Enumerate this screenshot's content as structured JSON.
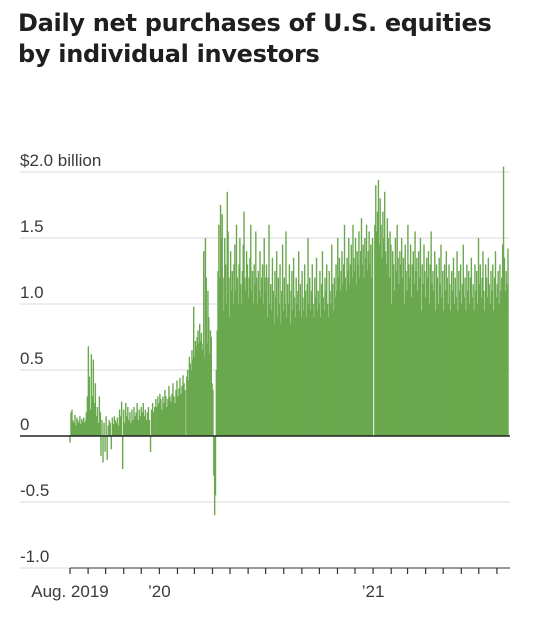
{
  "chart_data": {
    "type": "bar",
    "title": "Daily net purchases of U.S. equities by individual investors",
    "xlabel": "",
    "ylabel": "",
    "ylim": [
      -1.0,
      2.0
    ],
    "y_ticks": [
      {
        "value": 2.0,
        "label": "$2.0 billion"
      },
      {
        "value": 1.5,
        "label": "1.5"
      },
      {
        "value": 1.0,
        "label": "1.0"
      },
      {
        "value": 0.5,
        "label": "0.5"
      },
      {
        "value": 0,
        "label": "0"
      },
      {
        "value": -0.5,
        "label": "-0.5"
      },
      {
        "value": -1.0,
        "label": "-1.0"
      }
    ],
    "x_labels": [
      {
        "date": "2019-08",
        "label": "Aug. 2019"
      },
      {
        "date": "2020-01",
        "label": "’20"
      },
      {
        "date": "2021-01",
        "label": "’21"
      }
    ],
    "x_range": [
      "2019-08-01",
      "2021-08-20"
    ],
    "grid": true,
    "series": [
      {
        "color": "#6aa84f",
        "segments": [
          {
            "start": "2019-08-01",
            "end": "2019-08-28",
            "values": [
              -0.05,
              0.18,
              0.2,
              0.12,
              0.1,
              0.16,
              0.08,
              0.14,
              0.12,
              0.1,
              0.15,
              0.09,
              0.13,
              0.11,
              0.14,
              0.1,
              0.12
            ]
          },
          {
            "start": "2019-08-29",
            "end": "2019-09-22",
            "values": [
              0.18,
              0.3,
              0.68,
              0.45,
              0.2,
              0.62,
              0.3,
              0.58,
              0.25,
              0.4,
              0.15,
              0.22,
              0.1,
              0.3,
              0.18
            ]
          },
          {
            "start": "2019-09-23",
            "end": "2019-12-24",
            "values": [
              -0.15,
              0.12,
              -0.2,
              0.1,
              -0.12,
              0.15,
              -0.18,
              0.08,
              0.12,
              0.1,
              -0.1,
              0.14,
              0.09,
              0.15,
              0.12,
              0.1,
              0.14,
              0.08,
              0.2,
              0.15,
              0.26,
              -0.25,
              0.2,
              0.1,
              0.25,
              0.15,
              0.22,
              0.12,
              0.18,
              0.1,
              0.2,
              0.12,
              0.22,
              0.15,
              0.18,
              0.25,
              0.12,
              0.2,
              0.15,
              0.22,
              0.18,
              0.25,
              0.15,
              0.2,
              0.12,
              0.18,
              0.22,
              0.12,
              -0.12,
              0.2,
              0.25,
              0.18,
              0.22
            ]
          },
          {
            "start": "2019-12-26",
            "end": "2020-02-14",
            "values": [
              0.28,
              0.22,
              0.3,
              0.25,
              0.32,
              0.28,
              0.2,
              0.3,
              0.25,
              0.35,
              0.3,
              0.22,
              0.28,
              0.38,
              0.3,
              0.26,
              0.32,
              0.4,
              0.3,
              0.25,
              0.35,
              0.42,
              0.3,
              0.36,
              0.44,
              0.32,
              0.38,
              0.46,
              0.4,
              0.35
            ]
          },
          {
            "start": "2020-02-17",
            "end": "2020-03-16",
            "values": [
              0.45,
              0.5,
              0.42,
              0.6,
              0.55,
              0.5,
              0.65,
              0.58,
              0.98,
              0.6,
              0.72,
              0.68,
              0.75,
              0.8,
              0.7,
              0.85,
              0.72,
              0.78,
              0.65,
              0.7
            ]
          },
          {
            "start": "2020-03-17",
            "end": "2020-06-30",
            "values": [
              1.4,
              0.6,
              1.5,
              1.2,
              0.7,
              1.1,
              0.9,
              0.62,
              0.8,
              0.75,
              0.4,
              0.35,
              -0.3,
              -0.6,
              -0.45,
              0.5,
              0.8,
              1.25,
              1.6,
              1.2,
              1.75,
              1.5,
              1.68,
              1.2,
              0.95,
              1.5,
              1.3,
              1.0,
              1.85,
              1.55,
              1.2,
              0.9,
              1.4,
              1.1,
              1.25,
              1.0,
              1.3,
              1.45,
              1.1,
              1.6,
              1.2,
              1.0,
              1.3,
              1.5,
              1.15,
              1.0,
              1.25,
              1.45,
              1.7,
              1.2,
              1.1,
              1.4,
              1.3,
              1.05,
              1.2,
              1.35,
              1.6,
              1.1,
              1.25,
              1.0,
              1.3,
              1.15,
              1.55,
              1.2,
              1.0,
              1.25,
              1.1,
              1.4,
              1.05,
              1.2,
              1.3,
              1.0,
              1.5,
              1.2
            ]
          },
          {
            "start": "2020-07-01",
            "end": "2020-12-31",
            "values": [
              1.1,
              1.3,
              0.9,
              1.2,
              1.6,
              1.0,
              1.15,
              0.95,
              1.35,
              1.1,
              0.85,
              1.25,
              1.05,
              1.4,
              0.9,
              1.2,
              1.0,
              1.3,
              0.85,
              1.1,
              1.45,
              0.95,
              1.2,
              1.0,
              1.55,
              0.9,
              1.15,
              1.0,
              1.3,
              0.85,
              1.1,
              1.25,
              0.95,
              1.35,
              1.05,
              0.9,
              1.2,
              1.0,
              1.1,
              1.4,
              0.95,
              1.15,
              0.9,
              1.25,
              1.05,
              0.95,
              1.3,
              1.1,
              0.9,
              1.15,
              1.5,
              1.0,
              1.2,
              0.95,
              1.1,
              1.3,
              1.0,
              0.9,
              1.2,
              1.05,
              1.35,
              0.95,
              1.1,
              1.0,
              1.25,
              0.9,
              1.15,
              1.4,
              1.05,
              0.95,
              1.2,
              1.1,
              1.3,
              1.0,
              0.9,
              1.25,
              1.1,
              1.0,
              1.45,
              1.15,
              0.95,
              1.2,
              1.05,
              1.3,
              1.1,
              1.5,
              1.2,
              1.35,
              1.1,
              1.25,
              1.4,
              1.15,
              1.3,
              1.6,
              1.2,
              1.1,
              1.35,
              1.25,
              1.5,
              1.15,
              1.3,
              1.45,
              1.2,
              1.6,
              1.35,
              1.25,
              1.5,
              1.15,
              1.4,
              1.3,
              1.55,
              1.2,
              1.4,
              1.65,
              1.3,
              1.45,
              1.2,
              1.5,
              1.35,
              1.6,
              1.25,
              1.4,
              1.55,
              1.3,
              1.45,
              1.2,
              1.5
            ]
          },
          {
            "start": "2021-01-04",
            "end": "2021-08-20",
            "values": [
              1.6,
              1.9,
              1.55,
              1.7,
              1.94,
              1.45,
              1.8,
              1.6,
              1.35,
              1.7,
              1.5,
              1.85,
              1.4,
              1.3,
              1.65,
              1.5,
              1.2,
              1.55,
              1.45,
              1.0,
              1.4,
              1.3,
              1.1,
              1.5,
              1.25,
              1.6,
              1.35,
              1.15,
              1.4,
              1.3,
              1.5,
              1.2,
              1.35,
              1.0,
              1.45,
              1.25,
              1.1,
              1.6,
              1.3,
              1.2,
              1.45,
              1.05,
              1.3,
              1.4,
              1.15,
              1.55,
              1.25,
              1.35,
              1.1,
              1.4,
              1.2,
              1.5,
              0.95,
              1.3,
              1.15,
              1.45,
              1.25,
              1.05,
              1.35,
              1.2,
              1.4,
              1.0,
              1.3,
              1.55,
              1.15,
              1.25,
              1.1,
              1.4,
              0.95,
              1.3,
              1.2,
              1.0,
              1.35,
              1.15,
              1.45,
              1.05,
              1.25,
              0.95,
              1.3,
              1.1,
              1.4,
              1.2,
              1.0,
              1.3,
              1.15,
              0.95,
              1.25,
              1.1,
              1.35,
              1.0,
              1.2,
              1.05,
              1.4,
              0.95,
              1.25,
              1.1,
              1.3,
              1.0,
              1.15,
              1.45,
              1.05,
              1.2,
              0.95,
              1.3,
              1.1,
              1.25,
              1.0,
              1.2,
              1.35,
              1.05,
              1.15,
              0.95,
              1.3,
              1.1,
              1.25,
              1.0,
              1.5,
              1.15,
              1.3,
              1.05,
              1.2,
              1.4,
              1.1,
              0.95,
              1.3,
              1.2,
              1.05,
              1.35,
              1.15,
              1.0,
              1.25,
              1.1,
              1.3,
              0.95,
              1.2,
              1.4,
              1.05,
              1.15,
              1.25,
              1.0,
              1.3,
              1.1,
              1.2,
              1.45,
              2.04,
              1.35,
              1.1,
              1.25,
              1.15,
              1.42
            ]
          }
        ]
      }
    ]
  }
}
